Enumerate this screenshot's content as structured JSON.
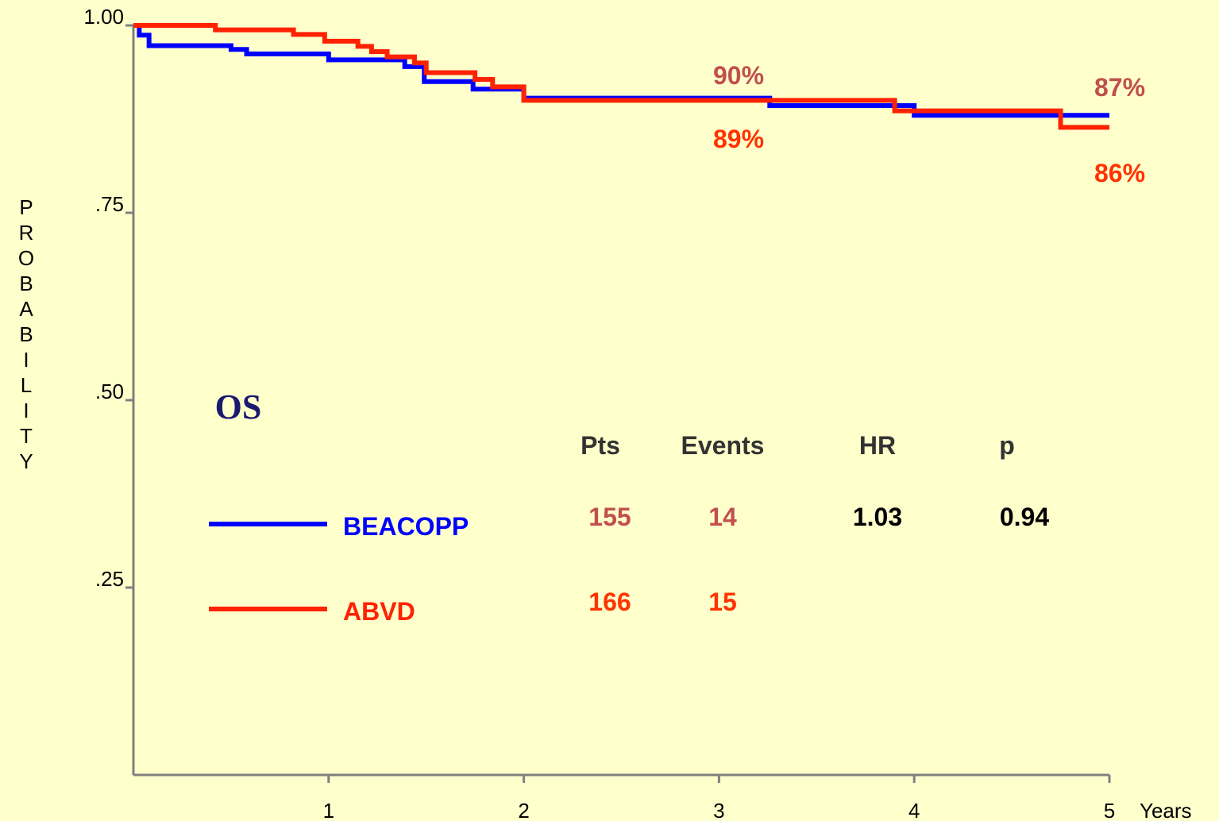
{
  "chart_data": {
    "type": "step",
    "title": "OS",
    "x_label": "Years",
    "y_label": "PROBABILITY",
    "xlim": [
      0,
      5
    ],
    "ylim": [
      0,
      1
    ],
    "xticks": [
      1,
      2,
      3,
      4,
      5
    ],
    "yticks": [
      {
        "value": 1,
        "label": "1.00"
      },
      {
        "value": 0.75,
        "label": ".75"
      },
      {
        "value": 0.5,
        "label": ".50"
      },
      {
        "value": 0.25,
        "label": ".25"
      }
    ],
    "series": [
      {
        "name": "BEACOPP",
        "color": "#0000ff",
        "x": [
          0,
          0.03,
          0.08,
          0.5,
          0.58,
          1.0,
          1.39,
          1.49,
          1.74,
          2.0,
          3.26,
          4.0
        ],
        "values": [
          1.0,
          0.987,
          0.973,
          0.968,
          0.962,
          0.954,
          0.945,
          0.925,
          0.915,
          0.903,
          0.893,
          0.88
        ]
      },
      {
        "name": "ABVD",
        "color": "#ff2200",
        "x": [
          0,
          0.42,
          0.82,
          0.98,
          1.15,
          1.22,
          1.3,
          1.44,
          1.5,
          1.75,
          1.84,
          2.0,
          3.9,
          4.75
        ],
        "values": [
          1.0,
          0.994,
          0.988,
          0.979,
          0.972,
          0.965,
          0.958,
          0.95,
          0.937,
          0.928,
          0.918,
          0.9,
          0.886,
          0.864
        ]
      }
    ],
    "annotations": [
      {
        "text": "90%",
        "color": "#c0504d"
      },
      {
        "text": "89%",
        "color": "#ff3300"
      },
      {
        "text": "87%",
        "color": "#c0504d"
      },
      {
        "text": "86%",
        "color": "#ff3300"
      }
    ],
    "table": {
      "header": [
        "Pts",
        "Events",
        "HR",
        "p"
      ],
      "rows": [
        [
          155,
          14,
          1.03,
          0.94
        ],
        [
          166,
          15
        ]
      ]
    }
  }
}
